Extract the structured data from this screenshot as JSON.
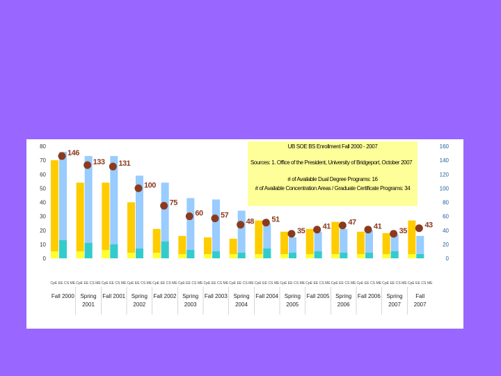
{
  "chart_data": {
    "type": "bar",
    "title": "UB SOE BS Enrollment Fall 2000 - 2007",
    "sources": "Sources: 1. Office of the President, University of Bridgeport, October 2007",
    "notes": [
      "# of Available Dual Degree Programs: 16",
      "# of Available Concentration Areas / Graduate Certificate Programs: 34"
    ],
    "categories": [
      "Fall 2000",
      "Spring 2001",
      "Fall 2001",
      "Spring 2002",
      "Fall 2002",
      "Spring 2003",
      "Fall 2003",
      "Spring 2004",
      "Fall 2004",
      "Spring 2005",
      "Fall 2005",
      "Spring 2006",
      "Fall 2006",
      "Spring 2007",
      "Fall 2007"
    ],
    "category_lines": [
      [
        "Fall 2000"
      ],
      [
        "Spring",
        "2001"
      ],
      [
        "Fall 2001"
      ],
      [
        "Spring",
        "2002"
      ],
      [
        "Fall 2002"
      ],
      [
        "Spring",
        "2003"
      ],
      [
        "Fall 2003"
      ],
      [
        "Spring",
        "2004"
      ],
      [
        "Fall 2004"
      ],
      [
        "Spring",
        "2005"
      ],
      [
        "Fall 2005"
      ],
      [
        "Spring",
        "2006"
      ],
      [
        "Fall 2006"
      ],
      [
        "Spring",
        "2007"
      ],
      [
        "Fall",
        "2007"
      ]
    ],
    "sub_category_label": "CpE EE CS ME",
    "series": [
      {
        "name": "Orange bars",
        "color": "#ffcc00",
        "values": [
          70,
          54,
          54,
          40,
          21,
          16,
          15,
          14,
          27,
          19,
          21,
          26,
          19,
          18,
          27
        ]
      },
      {
        "name": "Light blue bars",
        "color": "#99ccff",
        "values": [
          76,
          73,
          73,
          59,
          54,
          43,
          42,
          34,
          25,
          15,
          19,
          21,
          20,
          17,
          16
        ]
      },
      {
        "name": "Yellow segments",
        "color": "#ffff33",
        "values": [
          5,
          5,
          6,
          4,
          4,
          3,
          3,
          3,
          3,
          3,
          3,
          3,
          3,
          3,
          3
        ]
      },
      {
        "name": "Teal segments",
        "color": "#33cccc",
        "values": [
          13,
          11,
          10,
          7,
          12,
          6,
          5,
          4,
          7,
          4,
          5,
          4,
          4,
          5,
          3
        ]
      },
      {
        "name": "Total (markers)",
        "color": "#8b3a1e",
        "axis": "right",
        "values": [
          146,
          133,
          131,
          100,
          75,
          60,
          57,
          48,
          51,
          35,
          41,
          47,
          41,
          35,
          43
        ]
      }
    ],
    "y_left": {
      "min": 0,
      "max": 80,
      "ticks": [
        "0",
        "10",
        "20",
        "30",
        "40",
        "50",
        "60",
        "70",
        "80"
      ]
    },
    "y_right": {
      "min": 0,
      "max": 160,
      "ticks": [
        "0",
        "20",
        "40",
        "60",
        "80",
        "100",
        "120",
        "140",
        "160"
      ]
    }
  }
}
